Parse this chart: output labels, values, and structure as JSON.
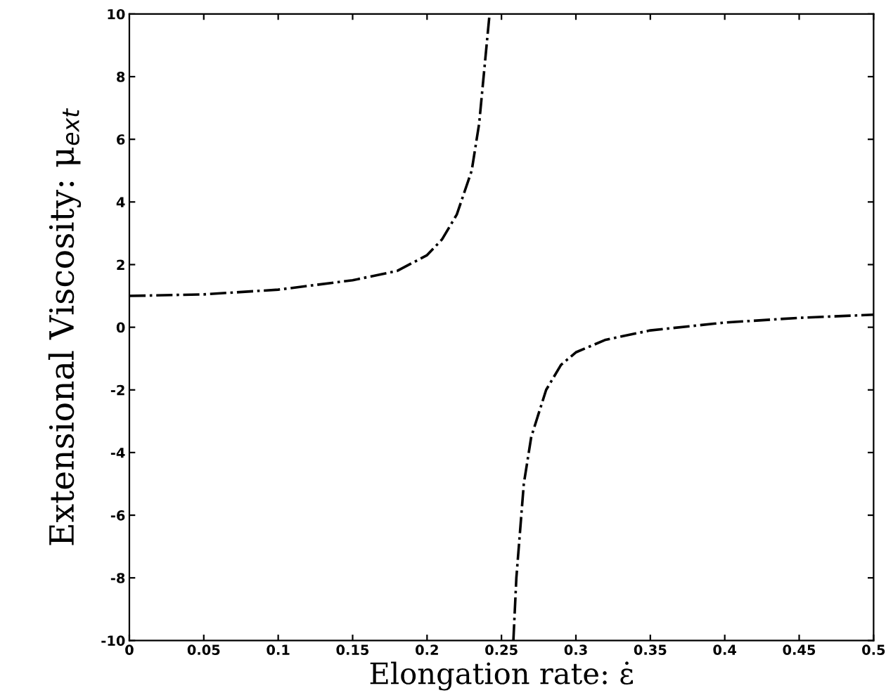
{
  "chart_data": {
    "type": "line",
    "xlabel": "Elongation rate: ε̇",
    "ylabel": "Extensional Viscosity: μ$_{ext}$",
    "series": [
      {
        "color": "#000000",
        "x": [
          0,
          0.05,
          0.1,
          0.15,
          0.18,
          0.2,
          0.21,
          0.22,
          0.23,
          0.235,
          0.24,
          0.242
        ],
        "values": [
          1,
          1.05,
          1.2,
          1.5,
          1.8,
          2.3,
          2.8,
          3.6,
          5,
          6.5,
          9,
          10
        ]
      },
      {
        "color": "#000000",
        "x": [
          0.258,
          0.26,
          0.265,
          0.27,
          0.28,
          0.29,
          0.3,
          0.32,
          0.35,
          0.4,
          0.45,
          0.5
        ],
        "values": [
          -10,
          -8,
          -5,
          -3.5,
          -2,
          -1.2,
          -0.8,
          -0.4,
          -0.1,
          0.15,
          0.3,
          0.4
        ]
      }
    ],
    "xlim": [
      0,
      0.5
    ],
    "ylim": [
      -10,
      10
    ],
    "xticks": [
      0,
      0.05,
      0.1,
      0.15,
      0.2,
      0.25,
      0.3,
      0.35,
      0.4,
      0.45,
      0.5
    ],
    "yticks": [
      -10,
      -8,
      -6,
      -4,
      -2,
      0,
      2,
      4,
      6,
      8,
      10
    ],
    "line_style": "dashdot",
    "grid": false,
    "legend": false
  }
}
